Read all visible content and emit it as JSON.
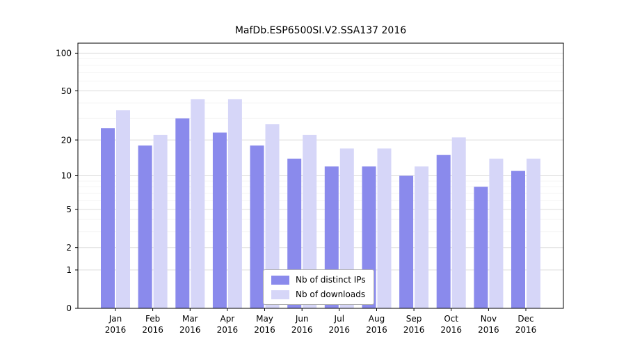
{
  "figure": {
    "background": "#ffffff"
  },
  "chart_data": {
    "type": "bar",
    "title": "MafDb.ESP6500SI.V2.SSA137 2016",
    "xlabel": "",
    "ylabel": "",
    "scale": "log1p",
    "grid": true,
    "legend_position": "lower center",
    "ylim": [
      0,
      120
    ],
    "y_ticks": [
      0,
      1,
      2,
      5,
      10,
      20,
      50,
      100
    ],
    "minor_ticks": [
      3,
      4,
      6,
      7,
      8,
      9,
      30,
      40,
      60,
      70,
      80,
      90
    ],
    "categories": [
      "Jan",
      "Feb",
      "Mar",
      "Apr",
      "May",
      "Jun",
      "Jul",
      "Aug",
      "Sep",
      "Oct",
      "Nov",
      "Dec"
    ],
    "year_label": "2016",
    "series": [
      {
        "name": "Nb of distinct IPs",
        "color": "#8a8aec",
        "values": [
          25,
          18,
          30,
          23,
          18,
          14,
          12,
          12,
          10,
          15,
          8,
          11
        ]
      },
      {
        "name": "Nb of downloads",
        "color": "#d6d6f8",
        "values": [
          35,
          22,
          43,
          43,
          27,
          22,
          17,
          17,
          12,
          21,
          14,
          14
        ]
      }
    ],
    "colors": {
      "axis": "#000000",
      "major_grid": "#dddddd",
      "minor_grid": "#f1f1f1",
      "text": "#000000"
    }
  }
}
